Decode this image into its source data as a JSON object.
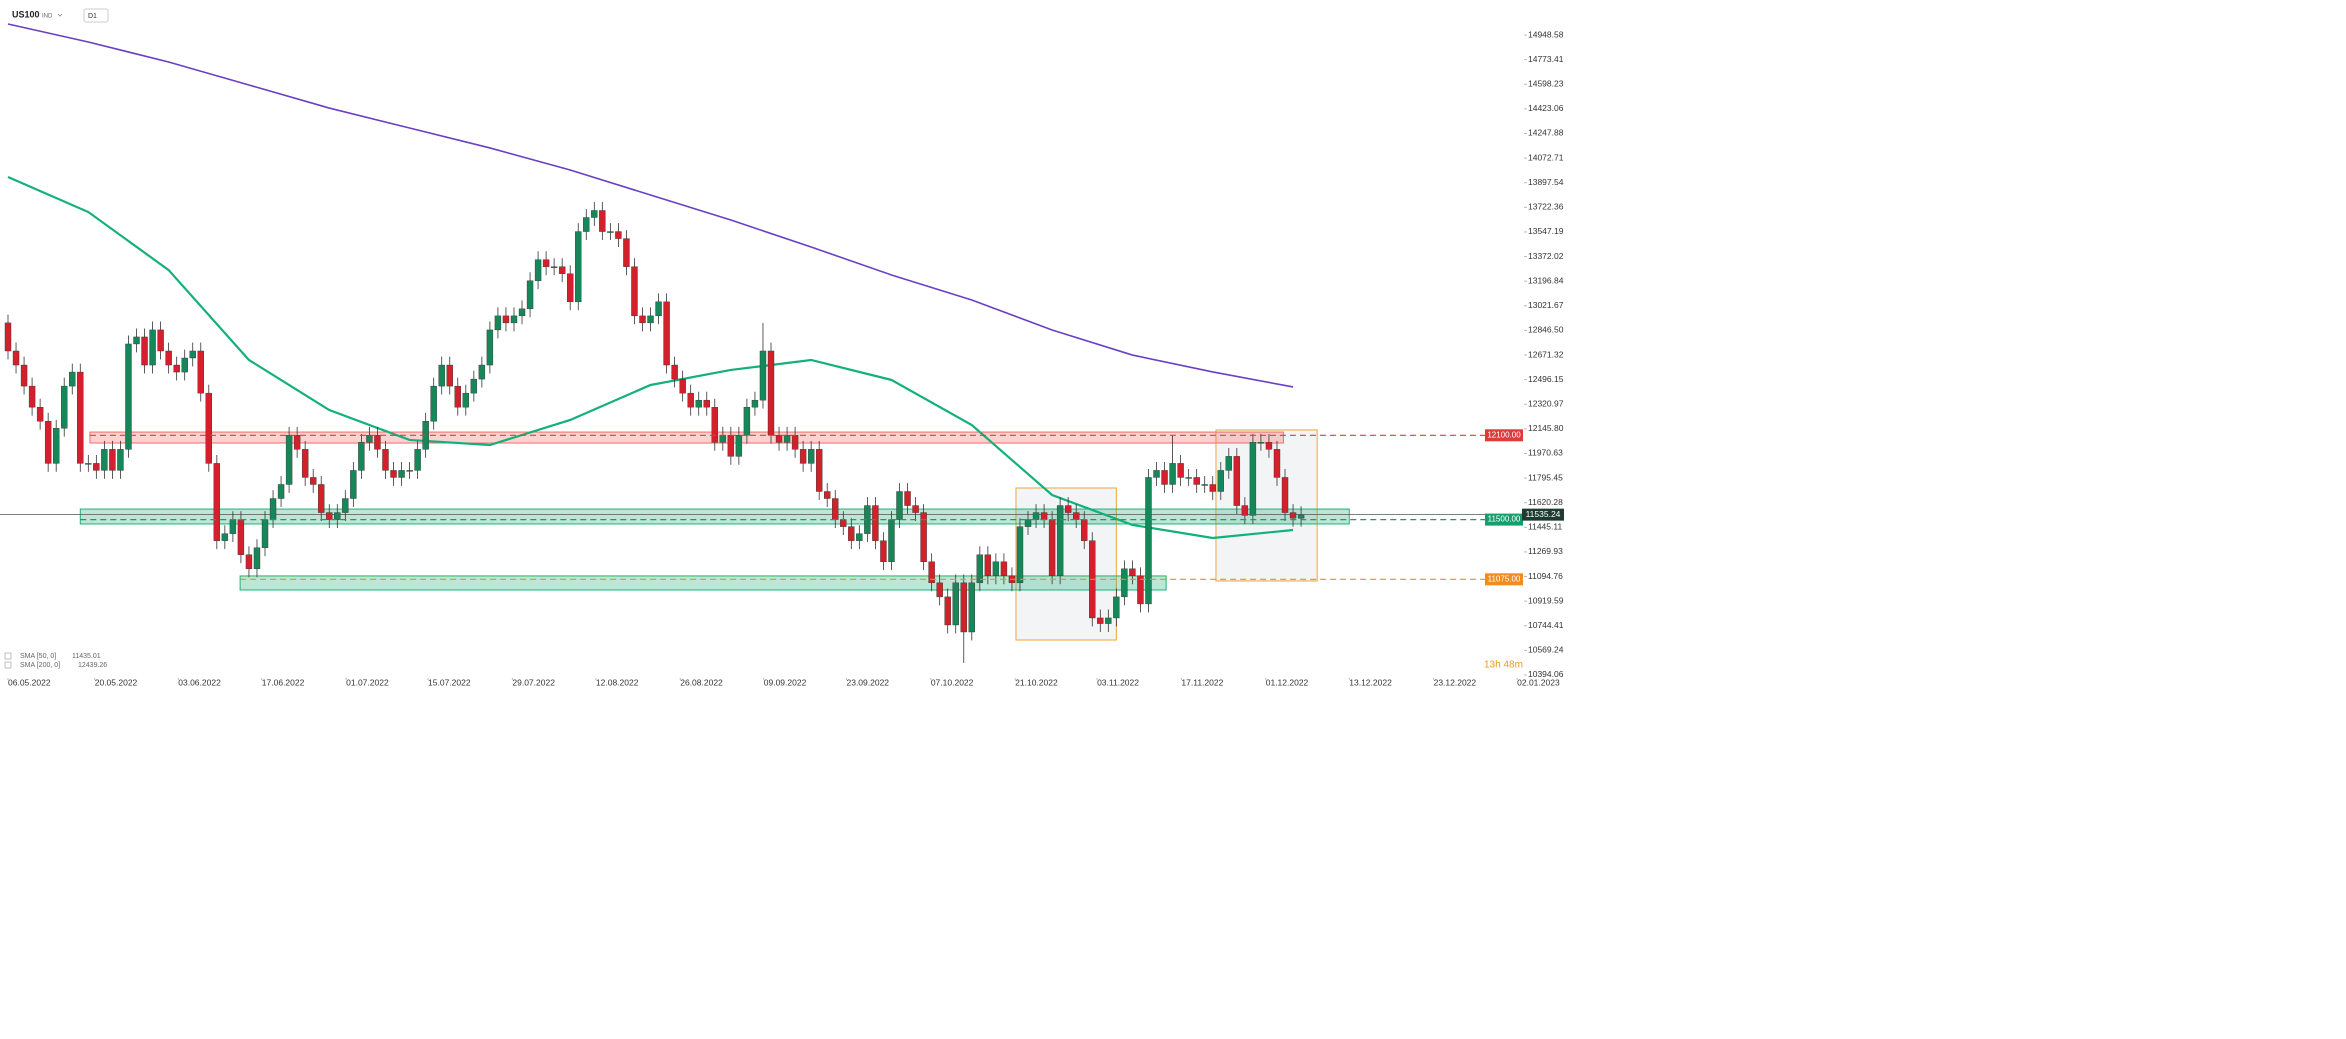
{
  "chart_data": {
    "type": "candlestick",
    "symbol": "US100",
    "market": "IND",
    "timeframe": "D1",
    "open": [
      12900,
      12700,
      12600,
      12450,
      12300,
      12200,
      11900,
      12150,
      12450,
      12550,
      11900,
      11900,
      11850,
      12000,
      11850,
      12000,
      12750,
      12800,
      12600,
      12850,
      12700,
      12600,
      12550,
      12650,
      12700,
      12400,
      11900,
      11350,
      11400,
      11500,
      11250,
      11150,
      11300,
      11500,
      11650,
      11750,
      12100,
      12000,
      11800,
      11750,
      11550,
      11500,
      11550,
      11650,
      11850,
      12050,
      12100,
      12000,
      11850,
      11800,
      11850,
      11850,
      12000,
      12200,
      12450,
      12600,
      12450,
      12300,
      12400,
      12500,
      12600,
      12850,
      12950,
      12900,
      12950,
      13000,
      13200,
      13350,
      13300,
      13300,
      13250,
      13050,
      13550,
      13650,
      13700,
      13550,
      13550,
      13500,
      13300,
      12950,
      12900,
      12950,
      13050,
      12600,
      12500,
      12400,
      12300,
      12350,
      12300,
      12050,
      12100,
      11950,
      12100,
      12300,
      12350,
      12700,
      12100,
      12050,
      12100,
      12000,
      11900,
      12000,
      11700,
      11650,
      11500,
      11450,
      11350,
      11400,
      11600,
      11350,
      11200,
      11500,
      11700,
      11600,
      11550,
      11200,
      11050,
      10950,
      10750,
      11050,
      10700,
      11050,
      11250,
      11100,
      11200,
      11100,
      11050,
      11450,
      11500,
      11550,
      11500,
      11100,
      11600,
      11550,
      11500,
      11350,
      10800,
      10760,
      10800,
      10950,
      11150,
      11100,
      10900,
      11800,
      11850,
      11750,
      11900,
      11800,
      11800,
      11750,
      11750,
      11700,
      11850,
      11950,
      11600,
      11530,
      12050,
      12050,
      12000,
      11800,
      11550,
      11510
    ],
    "high": [
      12960,
      12760,
      12660,
      12510,
      12360,
      12260,
      12210,
      12510,
      12610,
      12610,
      11960,
      11960,
      12060,
      12060,
      12060,
      12810,
      12860,
      12860,
      12910,
      12910,
      12760,
      12660,
      12710,
      12760,
      12760,
      12460,
      11960,
      11460,
      11560,
      11560,
      11310,
      11360,
      11560,
      11710,
      11810,
      12160,
      12160,
      12060,
      11860,
      11810,
      11610,
      11610,
      11710,
      11910,
      12110,
      12160,
      12160,
      12060,
      11910,
      11910,
      11910,
      12060,
      12260,
      12510,
      12660,
      12660,
      12510,
      12460,
      12560,
      12660,
      12910,
      13010,
      13010,
      13010,
      13060,
      13260,
      13410,
      13410,
      13360,
      13360,
      13310,
      13610,
      13710,
      13760,
      13760,
      13610,
      13610,
      13560,
      13360,
      13010,
      13010,
      13110,
      13110,
      12660,
      12560,
      12460,
      12410,
      12410,
      12360,
      12160,
      12160,
      12160,
      12360,
      12410,
      12900,
      12760,
      12160,
      12160,
      12160,
      12060,
      12060,
      12060,
      11760,
      11710,
      11560,
      11510,
      11460,
      11660,
      11660,
      11410,
      11560,
      11760,
      11760,
      11660,
      11610,
      11260,
      11110,
      11010,
      11110,
      11110,
      11110,
      11310,
      11310,
      11260,
      11260,
      11160,
      11510,
      11560,
      11610,
      11610,
      11560,
      11660,
      11660,
      11610,
      11560,
      11410,
      10860,
      10860,
      11010,
      11210,
      11210,
      11160,
      11860,
      11910,
      11910,
      12100,
      11960,
      11860,
      11860,
      11810,
      11810,
      11910,
      12010,
      12010,
      11660,
      12110,
      12110,
      12110,
      12060,
      11860,
      11610,
      11595
    ],
    "low": [
      12640,
      12540,
      12390,
      12240,
      12140,
      11840,
      11840,
      12090,
      12390,
      11840,
      11840,
      11790,
      11790,
      11790,
      11790,
      11940,
      12690,
      12540,
      12540,
      12640,
      12540,
      12490,
      12490,
      12590,
      12340,
      11840,
      11290,
      11290,
      11340,
      11190,
      11090,
      11090,
      11240,
      11440,
      11590,
      11690,
      11940,
      11740,
      11690,
      11490,
      11440,
      11440,
      11490,
      11590,
      11790,
      11990,
      11940,
      11790,
      11740,
      11740,
      11790,
      11790,
      11940,
      12140,
      12390,
      12390,
      12240,
      12240,
      12340,
      12440,
      12540,
      12790,
      12840,
      12840,
      12890,
      12940,
      13140,
      13240,
      13240,
      13190,
      12990,
      12990,
      13490,
      13590,
      13490,
      13490,
      13440,
      13240,
      12890,
      12840,
      12840,
      12890,
      12540,
      12440,
      12340,
      12240,
      12240,
      12240,
      11990,
      11990,
      11890,
      11890,
      12040,
      12240,
      12290,
      12040,
      11990,
      11990,
      11940,
      11840,
      11840,
      11640,
      11590,
      11440,
      11390,
      11290,
      11290,
      11340,
      11290,
      11140,
      11140,
      11440,
      11540,
      11490,
      11140,
      10990,
      10890,
      10690,
      10690,
      10480,
      10640,
      10990,
      11040,
      11040,
      11040,
      10990,
      10990,
      11390,
      11440,
      11440,
      11040,
      11040,
      11490,
      11440,
      11290,
      10740,
      10700,
      10700,
      10740,
      10890,
      11040,
      10840,
      10840,
      11740,
      11690,
      11690,
      11740,
      11740,
      11690,
      11690,
      11640,
      11640,
      11790,
      11540,
      11470,
      11470,
      11990,
      11940,
      11740,
      11490,
      11450,
      11450
    ],
    "close": [
      12700,
      12600,
      12450,
      12300,
      12200,
      11900,
      12150,
      12450,
      12550,
      11900,
      11900,
      11850,
      12000,
      11850,
      12000,
      12750,
      12800,
      12600,
      12850,
      12700,
      12600,
      12550,
      12650,
      12700,
      12400,
      11900,
      11350,
      11400,
      11500,
      11250,
      11150,
      11300,
      11500,
      11650,
      11750,
      12100,
      12000,
      11800,
      11750,
      11550,
      11500,
      11550,
      11650,
      11850,
      12050,
      12100,
      12000,
      11850,
      11800,
      11850,
      11850,
      12000,
      12200,
      12450,
      12600,
      12450,
      12300,
      12400,
      12500,
      12600,
      12850,
      12950,
      12900,
      12950,
      13000,
      13200,
      13350,
      13300,
      13300,
      13250,
      13050,
      13550,
      13650,
      13700,
      13550,
      13550,
      13500,
      13300,
      12950,
      12900,
      12950,
      13050,
      12600,
      12500,
      12400,
      12300,
      12350,
      12300,
      12050,
      12100,
      11950,
      12100,
      12300,
      12350,
      12700,
      12100,
      12050,
      12100,
      12000,
      11900,
      12000,
      11700,
      11650,
      11500,
      11450,
      11350,
      11400,
      11600,
      11350,
      11200,
      11500,
      11700,
      11600,
      11550,
      11200,
      11050,
      10950,
      10750,
      11050,
      10700,
      11050,
      11250,
      11100,
      11200,
      11100,
      11050,
      11450,
      11500,
      11550,
      11500,
      11100,
      11600,
      11550,
      11500,
      11350,
      10800,
      10760,
      10800,
      10950,
      11150,
      11100,
      10900,
      11800,
      11850,
      11750,
      11900,
      11800,
      11800,
      11750,
      11750,
      11700,
      11850,
      11950,
      11600,
      11530,
      12050,
      12050,
      12000,
      11800,
      11550,
      11510,
      11535
    ],
    "up_color": "#17875a",
    "down_color": "#d3202b",
    "xlim": [
      0,
      190
    ],
    "xticks": [
      {
        "value": 0,
        "label": "06.05.2022"
      },
      {
        "value": 10.8,
        "label": "20.05.2022"
      },
      {
        "value": 21.2,
        "label": "03.06.2022"
      },
      {
        "value": 31.6,
        "label": "17.06.2022"
      },
      {
        "value": 42.1,
        "label": "01.07.2022"
      },
      {
        "value": 52.3,
        "label": "15.07.2022"
      },
      {
        "value": 62.8,
        "label": "29.07.2022"
      },
      {
        "value": 73.2,
        "label": "12.08.2022"
      },
      {
        "value": 83.7,
        "label": "26.08.2022"
      },
      {
        "value": 94.1,
        "label": "09.09.2022"
      },
      {
        "value": 104.4,
        "label": "23.09.2022"
      },
      {
        "value": 114.9,
        "label": "07.10.2022"
      },
      {
        "value": 125.4,
        "label": "21.10.2022"
      },
      {
        "value": 135.6,
        "label": "03.11.2022"
      },
      {
        "value": 146.1,
        "label": "17.11.2022"
      },
      {
        "value": 156.6,
        "label": "01.12.2022"
      },
      {
        "value": 167.0,
        "label": "13.12.2022"
      },
      {
        "value": 177.5,
        "label": "23.12.2022"
      },
      {
        "value": 187.9,
        "label": "02.01.2023"
      }
    ],
    "ylim": [
      10394,
      15198
    ],
    "yticks": [
      14948.58,
      14773.41,
      14598.23,
      14423.06,
      14247.88,
      14072.71,
      13897.54,
      13722.36,
      13547.19,
      13372.02,
      13196.84,
      13021.67,
      {
        "value": 12846.5,
        "label": "12846.50"
      },
      12671.32,
      12496.15,
      12320.97,
      {
        "value": 12145.8,
        "label": "12145.80"
      },
      11970.63,
      11795.45,
      11620.28,
      11445.11,
      11269.93,
      11094.76,
      10919.59,
      10744.41,
      10569.24,
      10394.06
    ],
    "series": [
      {
        "name": "SMA [50, 0]",
        "color": "#14b07c",
        "last_value": 11435.01,
        "x": [
          0,
          10,
          20,
          30,
          40,
          50,
          60,
          70,
          80,
          90,
          100,
          110,
          120,
          130,
          140,
          150,
          160
        ],
        "values": [
          13938,
          13689,
          13276,
          12636,
          12280,
          12067,
          12031,
          12209,
          12458,
          12565,
          12636,
          12494,
          12173,
          11675,
          11462,
          11369,
          11426
        ]
      },
      {
        "name": "SMA [200, 0]",
        "color": "#6a3fc4",
        "last_value": 12439.26,
        "x": [
          0,
          10,
          20,
          30,
          40,
          50,
          60,
          70,
          80,
          90,
          100,
          110,
          120,
          130,
          140,
          150,
          160
        ],
        "values": [
          15027,
          14899,
          14757,
          14593,
          14429,
          14287,
          14145,
          13988,
          13810,
          13632,
          13440,
          13241,
          13063,
          12849,
          12671,
          12551,
          12444
        ]
      }
    ],
    "zones": [
      {
        "xlim": [
          10.2,
          158.8
        ],
        "ylim": [
          12045,
          12123
        ],
        "color": "#f26b6b"
      },
      {
        "xlim": [
          9,
          167
        ],
        "ylim": [
          11469,
          11575
        ],
        "color": "#22b07a"
      },
      {
        "xlim": [
          28.9,
          144.2
        ],
        "ylim": [
          10999,
          11099
        ],
        "color": "#22b07a"
      }
    ],
    "levels": [
      {
        "value": 12100,
        "label": "12100.00",
        "color": "#e03b3b"
      },
      {
        "value": 11500,
        "label": "11500.00",
        "color": "#13a06e"
      },
      {
        "value": 11075,
        "label": "11075.00",
        "color": "#f28c1b"
      }
    ],
    "boxes": [
      {
        "xlim": [
          125.5,
          138
        ],
        "ylim": [
          10643,
          11725
        ],
        "color": "#f2a33a"
      },
      {
        "xlim": [
          150.4,
          163
        ],
        "ylim": [
          11063,
          12138
        ],
        "color": "#f2a33a"
      }
    ],
    "last_price": {
      "value": 11535.24,
      "label": "11535.24",
      "color": "#1e3b32"
    },
    "countdown": "13h 48m"
  }
}
